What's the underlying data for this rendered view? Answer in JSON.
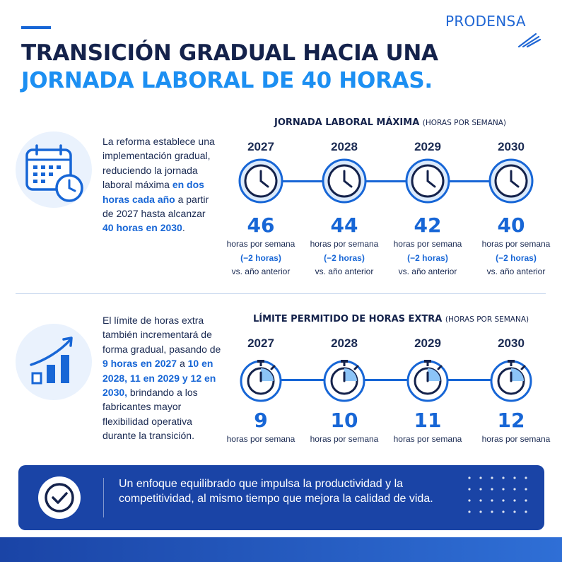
{
  "brand": {
    "logo_text": "PRODENSA"
  },
  "title": {
    "line1": "TRANSICIÓN GRADUAL HACIA UNA",
    "line2": "JORNADA LABORAL DE 40 HORAS."
  },
  "section_hours": {
    "heading": "JORNADA LABORAL MÁXIMA",
    "heading_sub": "(HORAS POR SEMANA)",
    "description": {
      "p1": "La reforma establece una implementación gradual, reduciendo la jornada laboral máxima ",
      "hl1": "en dos horas cada año",
      "p2": " a partir de 2027 hasta alcanzar ",
      "hl2": "40 horas en 2030",
      "p3": "."
    },
    "unit_label": "horas por semana",
    "delta_label": "(−2 horas)",
    "delta_sub": "vs. año anterior",
    "items": [
      {
        "year": "2027",
        "value": "46"
      },
      {
        "year": "2028",
        "value": "44"
      },
      {
        "year": "2029",
        "value": "42"
      },
      {
        "year": "2030",
        "value": "40"
      }
    ]
  },
  "section_overtime": {
    "heading": "LÍMITE PERMITIDO DE HORAS EXTRA",
    "heading_sub": "(HORAS POR SEMANA)",
    "description": {
      "p1": "El límite de horas extra también incrementará de forma gradual, pasando de ",
      "hl1": "9 horas en 2027",
      "p2": " a ",
      "hl2": "10 en 2028, 11 en 2029 y 12 en 2030,",
      "p3": " brindando a los fabricantes mayor flexibilidad operativa durante la transición."
    },
    "unit_label": "horas por semana",
    "items": [
      {
        "year": "2027",
        "value": "9"
      },
      {
        "year": "2028",
        "value": "10"
      },
      {
        "year": "2029",
        "value": "11"
      },
      {
        "year": "2030",
        "value": "12"
      }
    ]
  },
  "banner": {
    "text": "Un enfoque equilibrado que impulsa la productividad y la competitividad, al mismo tiempo que mejora la calidad de vida."
  },
  "colors": {
    "primary": "#1766d6",
    "light_blue": "#1c8ff2",
    "navy": "#14224b",
    "banner": "#1a44a6"
  },
  "icons": [
    "calendar-clock-icon",
    "clock-icon",
    "growth-chart-icon",
    "stopwatch-icon",
    "check-circle-icon"
  ]
}
